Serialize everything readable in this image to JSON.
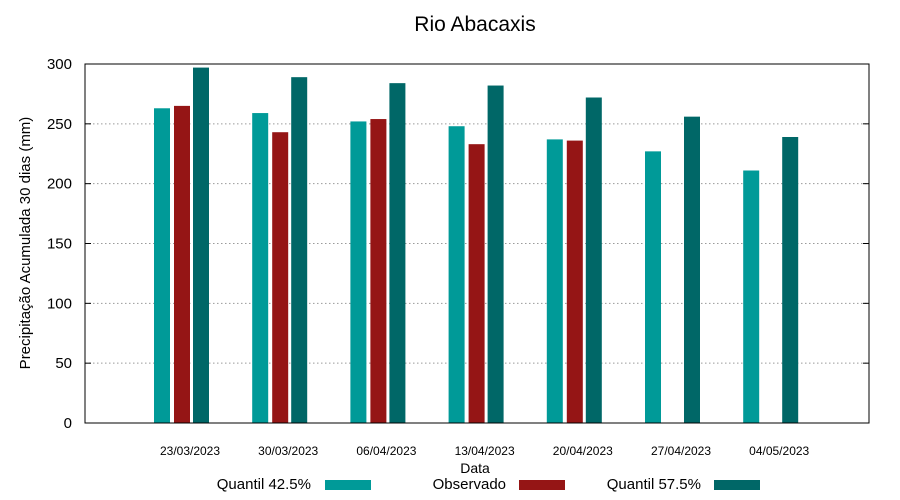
{
  "chart_data": {
    "type": "bar",
    "title": "Rio Abacaxis",
    "xlabel": "Data",
    "ylabel": "Precipitação Acumulada 30 dias (mm)",
    "ylim": [
      0,
      300
    ],
    "yticks": [
      "0",
      "50",
      "100",
      "150",
      "200",
      "250",
      "300"
    ],
    "grid": true,
    "legend_position": "bottom",
    "categories": [
      "23/03/2023",
      "30/03/2023",
      "06/04/2023",
      "13/04/2023",
      "20/04/2023",
      "27/04/2023",
      "04/05/2023"
    ],
    "series": [
      {
        "name": "Quantil 42.5%",
        "color": "#009a98",
        "values": [
          263,
          259,
          252,
          248,
          237,
          227,
          211
        ]
      },
      {
        "name": "Observado",
        "color": "#951515",
        "values": [
          265,
          243,
          254,
          233,
          236,
          null,
          null
        ]
      },
      {
        "name": "Quantil 57.5%",
        "color": "#006767",
        "values": [
          297,
          289,
          284,
          282,
          272,
          256,
          239
        ]
      }
    ]
  }
}
